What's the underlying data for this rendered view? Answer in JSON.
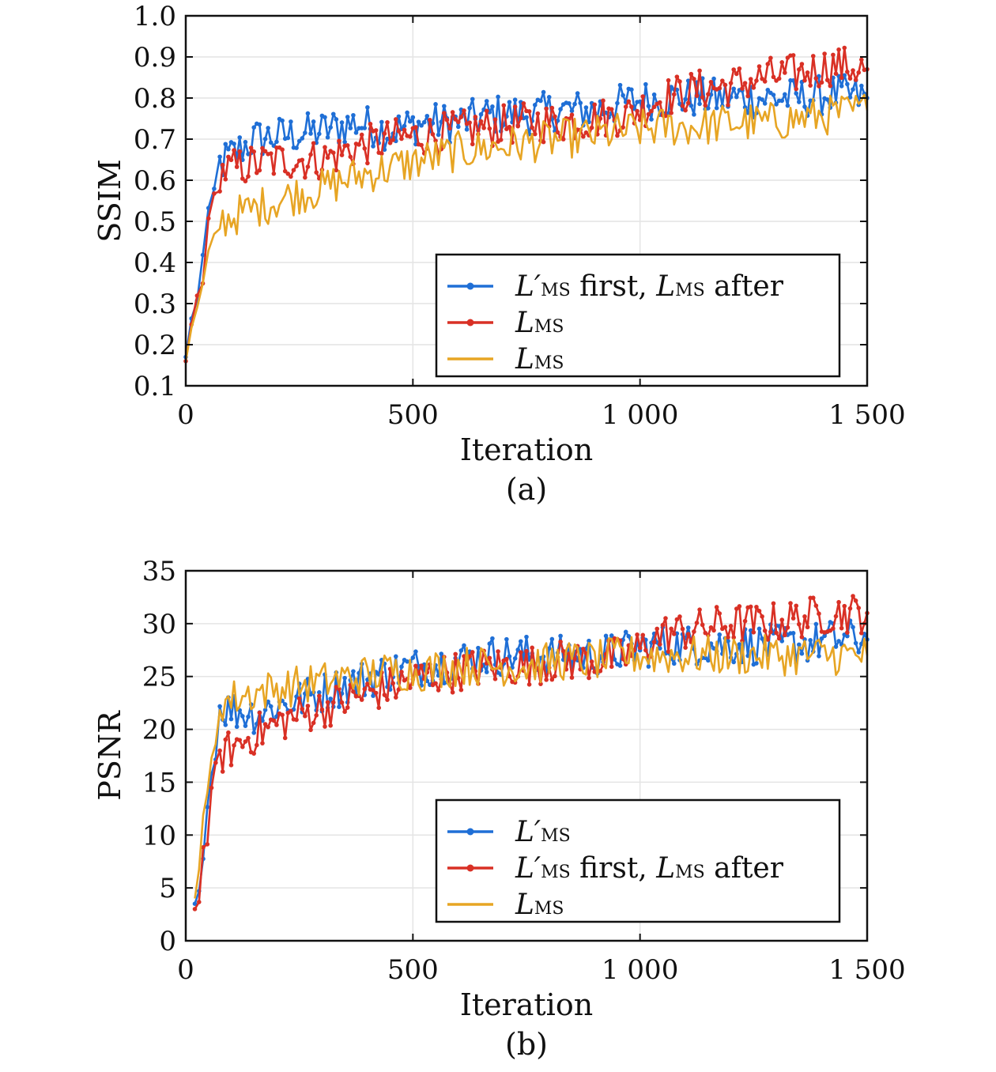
{
  "chart_data": [
    {
      "type": "line",
      "caption": "(a)",
      "xlabel": "Iteration",
      "ylabel": "SSIM",
      "xlim": [
        0,
        1500
      ],
      "ylim": [
        0.1,
        1.0
      ],
      "xticks": [
        0,
        500,
        1000,
        1500
      ],
      "xtick_labels": [
        "0",
        "500",
        "1 000",
        "1 500"
      ],
      "yticks": [
        0.1,
        0.2,
        0.3,
        0.4,
        0.5,
        0.6,
        0.7,
        0.8,
        0.9,
        1.0
      ],
      "ytick_labels": [
        "0.1",
        "0.2",
        "0.3",
        "0.4",
        "0.5",
        "0.6",
        "0.7",
        "0.8",
        "0.9",
        "1.0"
      ],
      "grid": true,
      "legend_position": "bottom-right",
      "series": [
        {
          "name_parts": [
            "L′",
            "MS",
            " first, ",
            "L",
            "MS",
            " after"
          ],
          "color": "#1f6fd6",
          "markers": true,
          "x": [
            0,
            75,
            150,
            225,
            300,
            375,
            450,
            525,
            600,
            675,
            750,
            825,
            900,
            975,
            1050,
            1125,
            1200,
            1275,
            1350,
            1425,
            1500
          ],
          "y": [
            0.17,
            0.64,
            0.7,
            0.71,
            0.72,
            0.74,
            0.72,
            0.74,
            0.74,
            0.76,
            0.76,
            0.77,
            0.77,
            0.79,
            0.8,
            0.8,
            0.8,
            0.8,
            0.8,
            0.81,
            0.8
          ]
        },
        {
          "name_parts": [
            "L",
            "MS"
          ],
          "color": "#d93025",
          "markers": true,
          "x": [
            0,
            75,
            150,
            225,
            300,
            375,
            450,
            525,
            600,
            675,
            750,
            825,
            900,
            975,
            1050,
            1125,
            1200,
            1275,
            1350,
            1425,
            1500
          ],
          "y": [
            0.16,
            0.62,
            0.64,
            0.65,
            0.65,
            0.68,
            0.7,
            0.71,
            0.72,
            0.73,
            0.74,
            0.74,
            0.75,
            0.76,
            0.8,
            0.82,
            0.83,
            0.85,
            0.86,
            0.88,
            0.87
          ]
        },
        {
          "name_parts": [
            "L",
            "MS"
          ],
          "color": "#e7a524",
          "markers": false,
          "x": [
            0,
            75,
            150,
            225,
            300,
            375,
            450,
            525,
            600,
            675,
            750,
            825,
            900,
            975,
            1050,
            1125,
            1200,
            1275,
            1350,
            1425,
            1500
          ],
          "y": [
            0.16,
            0.5,
            0.53,
            0.56,
            0.58,
            0.61,
            0.63,
            0.65,
            0.67,
            0.68,
            0.69,
            0.7,
            0.71,
            0.72,
            0.73,
            0.73,
            0.74,
            0.74,
            0.75,
            0.76,
            0.77
          ]
        }
      ]
    },
    {
      "type": "line",
      "caption": "(b)",
      "xlabel": "Iteration",
      "ylabel": "PSNR",
      "xlim": [
        0,
        1500
      ],
      "ylim": [
        0,
        35
      ],
      "xticks": [
        0,
        500,
        1000,
        1500
      ],
      "xtick_labels": [
        "0",
        "500",
        "1 000",
        "1 500"
      ],
      "yticks": [
        0,
        5,
        10,
        15,
        20,
        25,
        30,
        35
      ],
      "ytick_labels": [
        "0",
        "5",
        "10",
        "15",
        "20",
        "25",
        "30",
        "35"
      ],
      "grid": true,
      "legend_position": "bottom-right",
      "series": [
        {
          "name_parts": [
            "L′",
            "MS"
          ],
          "color": "#1f6fd6",
          "markers": true,
          "x": [
            20,
            75,
            150,
            225,
            300,
            375,
            450,
            525,
            600,
            675,
            750,
            825,
            900,
            975,
            1050,
            1125,
            1200,
            1275,
            1350,
            1425,
            1500
          ],
          "y": [
            3.5,
            22.0,
            21.5,
            22.5,
            23.5,
            24.5,
            25.5,
            26.0,
            26.5,
            27.0,
            27.0,
            27.0,
            27.0,
            27.5,
            28.0,
            28.0,
            28.0,
            28.0,
            28.0,
            28.5,
            28.5
          ]
        },
        {
          "name_parts": [
            "L′",
            "MS",
            " first, ",
            "L",
            "MS",
            " after"
          ],
          "color": "#d93025",
          "markers": true,
          "x": [
            20,
            75,
            150,
            225,
            300,
            375,
            450,
            525,
            600,
            675,
            750,
            825,
            900,
            975,
            1050,
            1125,
            1200,
            1275,
            1350,
            1425,
            1500
          ],
          "y": [
            3.0,
            17.5,
            19.5,
            21.0,
            22.0,
            23.0,
            24.0,
            25.0,
            25.5,
            26.0,
            26.0,
            26.5,
            26.5,
            27.0,
            29.0,
            29.5,
            30.0,
            30.0,
            30.5,
            31.0,
            31.0
          ]
        },
        {
          "name_parts": [
            "L",
            "MS"
          ],
          "color": "#e7a524",
          "markers": false,
          "x": [
            20,
            75,
            150,
            225,
            300,
            375,
            450,
            525,
            600,
            675,
            750,
            825,
            900,
            975,
            1050,
            1125,
            1200,
            1275,
            1350,
            1425,
            1500
          ],
          "y": [
            4.0,
            22.5,
            23.5,
            24.0,
            24.5,
            25.0,
            25.5,
            25.5,
            26.0,
            26.0,
            26.0,
            26.5,
            26.5,
            27.0,
            27.0,
            27.0,
            27.0,
            27.0,
            27.0,
            27.0,
            27.0
          ]
        }
      ]
    }
  ]
}
